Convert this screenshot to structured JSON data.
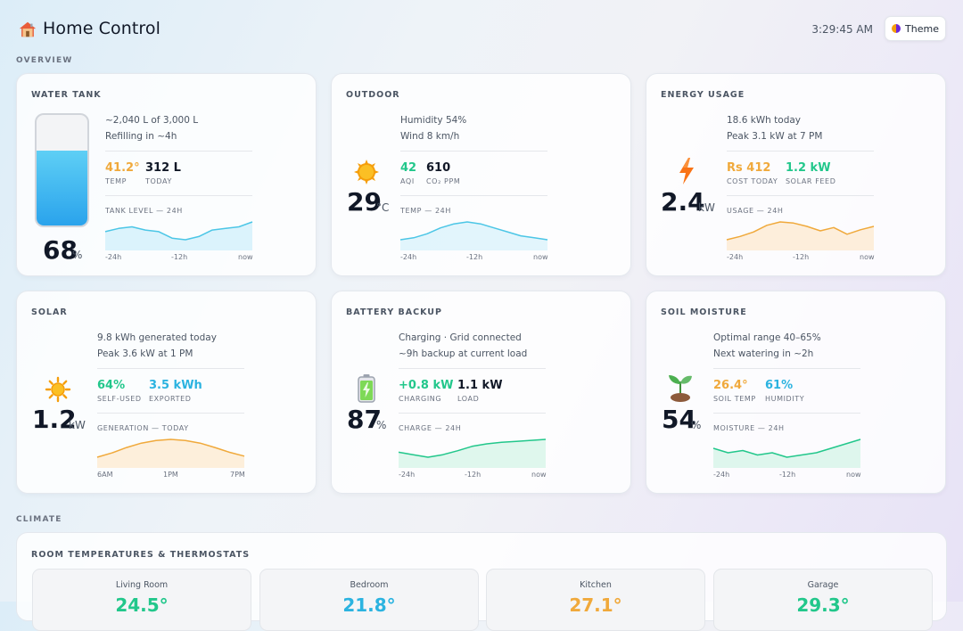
{
  "header": {
    "title": "Home Control",
    "clock": "3:29:45 AM",
    "theme_label": "Theme"
  },
  "sections": {
    "overview": "OVERVIEW",
    "climate": "CLIMATE"
  },
  "colors": {
    "green": "#22c78b",
    "blue": "#2bb3e0",
    "amber": "#f0a93b",
    "teal_line": "#4cc6e6"
  },
  "water_tank": {
    "title": "WATER TANK",
    "line1": "~2,040 L of 3,000 L",
    "line2": "Refilling in ~4h",
    "stat1_value": "41.2°",
    "stat1_label": "TEMP",
    "stat2_value": "312 L",
    "stat2_label": "TODAY",
    "spark_label": "TANK LEVEL — 24H",
    "ticks": [
      "-24h",
      "-12h",
      "now"
    ],
    "level_value": "68",
    "level_unit": "%",
    "level_fraction": 0.68,
    "series": [
      60,
      62,
      63,
      61,
      60,
      56,
      55,
      57,
      61,
      62,
      63,
      66
    ]
  },
  "outdoor": {
    "title": "OUTDOOR",
    "line1": "Humidity 54%",
    "line2": "Wind 8 km/h",
    "stat1_value": "42",
    "stat1_label": "AQI",
    "stat2_value": "610",
    "stat2_label": "CO₂ PPM",
    "spark_label": "TEMP — 24H",
    "ticks": [
      "-24h",
      "-12h",
      "now"
    ],
    "big_value": "29",
    "big_unit": "°C",
    "icon": "sun-icon",
    "series": [
      22,
      23,
      25,
      28,
      30,
      31,
      30,
      28,
      26,
      24,
      23,
      22
    ]
  },
  "energy": {
    "title": "ENERGY USAGE",
    "line1": "18.6 kWh today",
    "line2": "Peak 3.1 kW at 7 PM",
    "stat1_value": "Rs 412",
    "stat1_label": "COST TODAY",
    "stat2_value": "1.2 kW",
    "stat2_label": "SOLAR FEED",
    "spark_label": "USAGE — 24H",
    "ticks": [
      "-24h",
      "-12h",
      "now"
    ],
    "big_value": "2.4",
    "big_unit": "kW",
    "icon": "lightning-icon",
    "series": [
      20,
      23,
      27,
      33,
      36,
      35,
      32,
      28,
      31,
      25,
      29,
      32
    ]
  },
  "solar": {
    "title": "SOLAR",
    "line1": "9.8 kWh generated today",
    "line2": "Peak 3.6 kW at 1 PM",
    "stat1_value": "64%",
    "stat1_label": "SELF-USED",
    "stat2_value": "3.5 kWh",
    "stat2_label": "EXPORTED",
    "spark_label": "GENERATION — TODAY",
    "ticks": [
      "6AM",
      "1PM",
      "7PM"
    ],
    "big_value": "1.2",
    "big_unit": "kW",
    "icon": "sun-icon",
    "series": [
      2,
      10,
      20,
      28,
      33,
      35,
      33,
      28,
      20,
      11,
      4
    ]
  },
  "battery": {
    "title": "BATTERY BACKUP",
    "line1": "Charging · Grid connected",
    "line2": "~9h backup at current load",
    "stat1_value": "+0.8 kW",
    "stat1_label": "CHARGING",
    "stat2_value": "1.1 kW",
    "stat2_label": "LOAD",
    "spark_label": "CHARGE — 24H",
    "ticks": [
      "-24h",
      "-12h",
      "now"
    ],
    "big_value": "87",
    "big_unit": "%",
    "icon": "battery-icon",
    "series": [
      60,
      55,
      50,
      55,
      63,
      72,
      77,
      80,
      82,
      84,
      86
    ]
  },
  "soil": {
    "title": "SOIL MOISTURE",
    "line1": "Optimal range 40–65%",
    "line2": "Next watering in ~2h",
    "stat1_value": "26.4°",
    "stat1_label": "SOIL TEMP",
    "stat2_value": "61%",
    "stat2_label": "HUMIDITY",
    "spark_label": "MOISTURE — 24H",
    "ticks": [
      "-24h",
      "-12h",
      "now"
    ],
    "big_value": "54",
    "big_unit": "%",
    "icon": "sprout-icon",
    "series": [
      58,
      56,
      57,
      55,
      56,
      54,
      55,
      56,
      58,
      60,
      62
    ]
  },
  "climate": {
    "title": "ROOM TEMPERATURES & THERMOSTATS",
    "rooms": [
      {
        "name": "Living Room",
        "temp": "24.5°",
        "color": "#22c78b"
      },
      {
        "name": "Bedroom",
        "temp": "21.8°",
        "color": "#2bb3e0"
      },
      {
        "name": "Kitchen",
        "temp": "27.1°",
        "color": "#f0a93b"
      },
      {
        "name": "Garage",
        "temp": "29.3°",
        "color": "#22c78b"
      }
    ]
  }
}
